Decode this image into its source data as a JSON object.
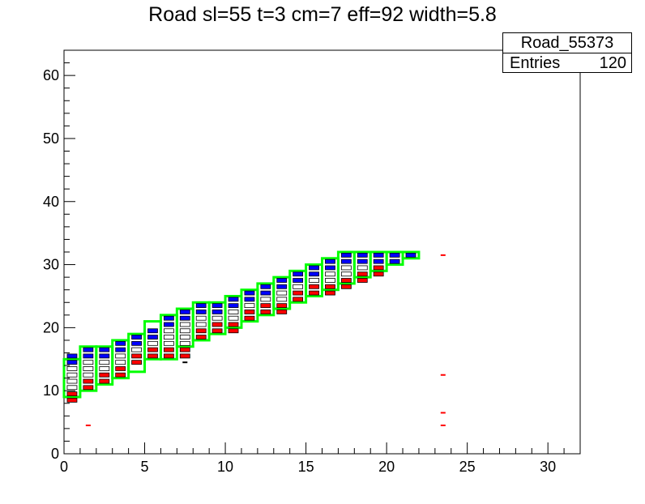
{
  "title": "Road sl=55 t=3 cm=7 eff=92 width=5.8",
  "stats": {
    "name": "Road_55373",
    "entries_label": "Entries",
    "entries_value": "120"
  },
  "chart_data": {
    "type": "heatmap",
    "title": "Road sl=55 t=3 cm=7 eff=92 width=5.8",
    "xlabel": "",
    "ylabel": "",
    "xlim": [
      0,
      32
    ],
    "ylim": [
      0,
      64
    ],
    "x_ticks": [
      "0",
      "5",
      "10",
      "15",
      "20",
      "25",
      "30"
    ],
    "y_ticks": [
      "0",
      "10",
      "20",
      "30",
      "40",
      "50",
      "60"
    ],
    "colors": {
      "hit_high": "#0000ff",
      "hit_low": "#ff0000",
      "hit_mid": "#ffffff",
      "road": "#00ff00"
    },
    "road_boxes": [
      {
        "x": 0,
        "y0": 9,
        "y1": 15
      },
      {
        "x": 1,
        "y0": 10,
        "y1": 17
      },
      {
        "x": 2,
        "y0": 11,
        "y1": 17
      },
      {
        "x": 3,
        "y0": 12,
        "y1": 18
      },
      {
        "x": 4,
        "y0": 13,
        "y1": 19
      },
      {
        "x": 5,
        "y0": 15,
        "y1": 21
      },
      {
        "x": 6,
        "y0": 15,
        "y1": 22
      },
      {
        "x": 7,
        "y0": 17,
        "y1": 23
      },
      {
        "x": 8,
        "y0": 18,
        "y1": 24
      },
      {
        "x": 9,
        "y0": 19,
        "y1": 24
      },
      {
        "x": 10,
        "y0": 20,
        "y1": 25
      },
      {
        "x": 11,
        "y0": 21,
        "y1": 26
      },
      {
        "x": 12,
        "y0": 22,
        "y1": 27
      },
      {
        "x": 13,
        "y0": 23,
        "y1": 28
      },
      {
        "x": 14,
        "y0": 24,
        "y1": 29
      },
      {
        "x": 15,
        "y0": 25,
        "y1": 30
      },
      {
        "x": 16,
        "y0": 26,
        "y1": 31
      },
      {
        "x": 17,
        "y0": 27,
        "y1": 32
      },
      {
        "x": 18,
        "y0": 28,
        "y1": 32
      },
      {
        "x": 19,
        "y0": 29,
        "y1": 32
      },
      {
        "x": 20,
        "y0": 30,
        "y1": 32
      },
      {
        "x": 21,
        "y0": 31,
        "y1": 32
      }
    ],
    "hit_columns": [
      {
        "x": 0,
        "y_min": 8,
        "y_max": 16
      },
      {
        "x": 1,
        "y_min": 10,
        "y_max": 17
      },
      {
        "x": 2,
        "y_min": 11,
        "y_max": 17
      },
      {
        "x": 3,
        "y_min": 12,
        "y_max": 18
      },
      {
        "x": 4,
        "y_min": 14,
        "y_max": 19
      },
      {
        "x": 5,
        "y_min": 15,
        "y_max": 20
      },
      {
        "x": 6,
        "y_min": 15,
        "y_max": 22
      },
      {
        "x": 7,
        "y_min": 15,
        "y_max": 23
      },
      {
        "x": 8,
        "y_min": 18,
        "y_max": 24
      },
      {
        "x": 9,
        "y_min": 19,
        "y_max": 24
      },
      {
        "x": 10,
        "y_min": 19,
        "y_max": 25
      },
      {
        "x": 11,
        "y_min": 21,
        "y_max": 26
      },
      {
        "x": 12,
        "y_min": 22,
        "y_max": 27
      },
      {
        "x": 13,
        "y_min": 22,
        "y_max": 28
      },
      {
        "x": 14,
        "y_min": 24,
        "y_max": 29
      },
      {
        "x": 15,
        "y_min": 25,
        "y_max": 30
      },
      {
        "x": 16,
        "y_min": 25,
        "y_max": 31
      },
      {
        "x": 17,
        "y_min": 26,
        "y_max": 32
      },
      {
        "x": 18,
        "y_min": 27,
        "y_max": 32
      },
      {
        "x": 19,
        "y_min": 28,
        "y_max": 32
      },
      {
        "x": 20,
        "y_min": 30,
        "y_max": 32
      },
      {
        "x": 21,
        "y_min": 31,
        "y_max": 32
      }
    ],
    "isolated_hits": [
      {
        "x": 1,
        "y": 4,
        "color": "#ff0000"
      },
      {
        "x": 23,
        "y": 31,
        "color": "#ff0000"
      },
      {
        "x": 23,
        "y": 12,
        "color": "#ff0000"
      },
      {
        "x": 23,
        "y": 6,
        "color": "#ff0000"
      },
      {
        "x": 23,
        "y": 4,
        "color": "#ff0000"
      },
      {
        "x": 7,
        "y": 14,
        "color": "#000000"
      }
    ]
  }
}
